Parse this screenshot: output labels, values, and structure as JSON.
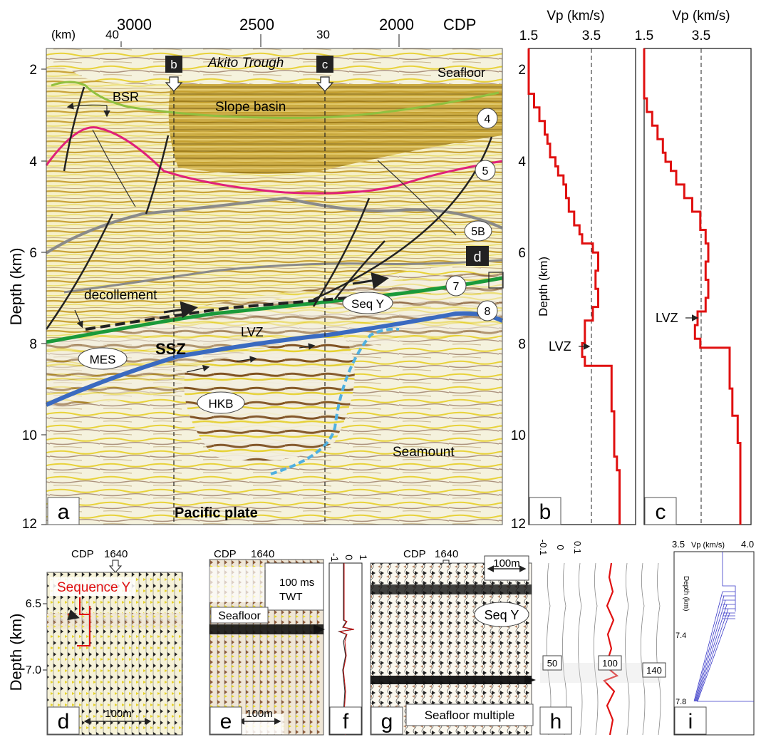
{
  "panel_a": {
    "top_axis": {
      "km_unit": "(km)",
      "km_40": "40",
      "km_30": "30",
      "cdp_3000": "3000",
      "cdp_2500": "2500",
      "cdp_2000": "2000",
      "cdp_label": "CDP"
    },
    "depth_ticks": [
      "2",
      "4",
      "6",
      "8",
      "10",
      "12"
    ],
    "y_label": "Depth (km)",
    "marker_b": "b",
    "marker_c": "c",
    "labels": {
      "akito": "Akito Trough",
      "seafloor": "Seafloor",
      "bsr": "BSR",
      "slope_basin": "Slope basin",
      "decollement": "decollement",
      "lvz": "LVZ",
      "ssz": "SSZ",
      "mes": "MES",
      "hkb": "HKB",
      "seamount": "Seamount",
      "pacific": "Pacific plate",
      "seq_y": "Seq Y",
      "d_box": "d"
    },
    "horizon_tags": [
      "4",
      "5",
      "5B",
      "7",
      "8"
    ],
    "panel_letter": "a",
    "colors": {
      "seafloor": "#c8a020",
      "bsr": "#90c040",
      "pink": "#e0207a",
      "grey": "#8a8a8a",
      "green": "#1a9a3a",
      "blue": "#3a6ac0",
      "cyan": "#50b0e0",
      "velocity": "#e01010"
    }
  },
  "panel_b": {
    "title": "Vp (km/s)",
    "tick_left": "1.5",
    "tick_mid": "3.5",
    "y_label": "Depth (km)",
    "lvz": "LVZ",
    "letter": "b",
    "depth_ticks": [
      "2",
      "4",
      "6",
      "8",
      "10",
      "12"
    ]
  },
  "panel_c": {
    "title": "Vp (km/s)",
    "tick_left": "1.5",
    "tick_mid": "3.5",
    "lvz": "LVZ",
    "letter": "c"
  },
  "panel_d": {
    "cdp": "CDP",
    "cdp_num": "1640",
    "seq": "Sequence Y",
    "scale": "100m",
    "letter": "d",
    "y_label": "Depth (km)",
    "ticks": [
      "6.5",
      "7.0"
    ]
  },
  "panel_e": {
    "cdp": "CDP",
    "cdp_num": "1640",
    "twt_1": "100 ms",
    "twt_2": "TWT",
    "seafloor": "Seafloor",
    "scale": "100m",
    "letter": "e"
  },
  "panel_f": {
    "ticks": [
      "-1",
      "0",
      "1"
    ],
    "letter": "f"
  },
  "panel_g": {
    "cdp": "CDP",
    "cdp_num": "1640",
    "scale": "100m",
    "seq": "Seq Y",
    "multiple": "Seafloor multiple",
    "letter": "g"
  },
  "panel_h": {
    "ticks": [
      "-0.1",
      "0",
      "0.1"
    ],
    "tags": [
      "50",
      "100",
      "140"
    ],
    "letter": "h"
  },
  "panel_i": {
    "x_min": "3.5",
    "title": "Vp (km/s)",
    "x_max": "4.0",
    "y_label": "Depth (km)",
    "ticks": [
      "7.4",
      "7.8"
    ],
    "letter": "i"
  },
  "chart_data": [
    {
      "type": "line",
      "panel": "b",
      "xlabel": "Vp (km/s)",
      "ylabel": "Depth (km)",
      "xlim": [
        1.5,
        5.5
      ],
      "ylim": [
        12,
        1.5
      ],
      "reference_vp": 3.5,
      "series": [
        {
          "points": [
            [
              1.5,
              1.5
            ],
            [
              1.5,
              2.2
            ],
            [
              1.7,
              2.5
            ],
            [
              1.9,
              2.8
            ],
            [
              2.1,
              3.1
            ],
            [
              2.2,
              3.4
            ],
            [
              2.3,
              3.6
            ],
            [
              2.5,
              3.9
            ],
            [
              2.6,
              4.1
            ],
            [
              2.8,
              4.3
            ],
            [
              2.9,
              4.5
            ],
            [
              3.0,
              4.8
            ],
            [
              3.2,
              5.1
            ],
            [
              3.4,
              5.4
            ],
            [
              3.5,
              5.6
            ],
            [
              3.9,
              5.8
            ],
            [
              4.1,
              6.0
            ],
            [
              4.0,
              6.4
            ],
            [
              4.1,
              6.8
            ],
            [
              3.9,
              7.2
            ],
            [
              3.6,
              7.5
            ],
            [
              3.5,
              8.0
            ],
            [
              3.6,
              8.3
            ],
            [
              4.6,
              8.5
            ],
            [
              4.7,
              9.5
            ],
            [
              4.8,
              10.5
            ],
            [
              4.9,
              10.8
            ],
            [
              4.9,
              12.0
            ]
          ]
        }
      ]
    },
    {
      "type": "line",
      "panel": "c",
      "xlabel": "Vp (km/s)",
      "ylabel": "Depth (km)",
      "xlim": [
        1.5,
        5.5
      ],
      "ylim": [
        12,
        1.5
      ],
      "reference_vp": 3.5,
      "series": [
        {
          "points": [
            [
              1.5,
              1.5
            ],
            [
              1.5,
              2.3
            ],
            [
              1.6,
              2.6
            ],
            [
              1.8,
              2.9
            ],
            [
              2.0,
              3.2
            ],
            [
              2.2,
              3.5
            ],
            [
              2.3,
              3.8
            ],
            [
              2.5,
              4.0
            ],
            [
              2.7,
              4.2
            ],
            [
              3.0,
              4.5
            ],
            [
              3.3,
              4.8
            ],
            [
              3.6,
              5.1
            ],
            [
              3.8,
              5.5
            ],
            [
              3.9,
              5.8
            ],
            [
              3.8,
              6.2
            ],
            [
              3.9,
              6.6
            ],
            [
              3.8,
              7.0
            ],
            [
              3.5,
              7.3
            ],
            [
              3.4,
              7.6
            ],
            [
              3.6,
              7.9
            ],
            [
              4.7,
              8.1
            ],
            [
              4.8,
              9.0
            ],
            [
              5.0,
              9.6
            ],
            [
              5.1,
              10.2
            ],
            [
              5.1,
              12.0
            ]
          ]
        }
      ]
    }
  ]
}
